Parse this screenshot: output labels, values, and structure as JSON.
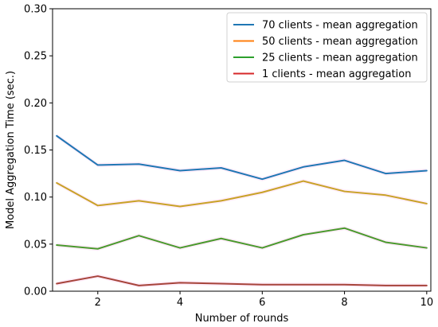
{
  "chart_data": {
    "type": "line",
    "title": "",
    "xlabel": "Number of rounds",
    "ylabel": "Model Aggregation Time (sec.)",
    "xlim": [
      0.9,
      10.1
    ],
    "ylim": [
      0.0,
      0.3
    ],
    "x_ticks": [
      2,
      4,
      6,
      8,
      10
    ],
    "x_tick_labels": [
      "2",
      "4",
      "6",
      "8",
      "10"
    ],
    "y_ticks": [
      0.0,
      0.05,
      0.1,
      0.15,
      0.2,
      0.25,
      0.3
    ],
    "y_tick_labels": [
      "0.00",
      "0.05",
      "0.10",
      "0.15",
      "0.20",
      "0.25",
      "0.30"
    ],
    "grid": false,
    "legend_position": "top-right",
    "x": [
      1,
      2,
      3,
      4,
      5,
      6,
      7,
      8,
      9,
      10
    ],
    "series": [
      {
        "name": "70 clients - mean aggregation",
        "color": "#1f77b4",
        "values": [
          0.165,
          0.134,
          0.135,
          0.128,
          0.131,
          0.119,
          0.132,
          0.139,
          0.125,
          0.128
        ]
      },
      {
        "name": "50 clients - mean aggregation",
        "color": "#c8a227",
        "values": [
          0.115,
          0.091,
          0.096,
          0.09,
          0.096,
          0.105,
          0.117,
          0.106,
          0.102,
          0.093
        ]
      },
      {
        "name": "25 clients - mean aggregation",
        "color": "#4a9a2e",
        "values": [
          0.049,
          0.045,
          0.059,
          0.046,
          0.056,
          0.046,
          0.06,
          0.067,
          0.052,
          0.046
        ]
      },
      {
        "name": "1 clients - mean aggregation",
        "color": "#a6443a",
        "values": [
          0.008,
          0.016,
          0.006,
          0.009,
          0.008,
          0.007,
          0.007,
          0.007,
          0.006,
          0.006
        ]
      }
    ],
    "legend_colors": [
      "#1f77b4",
      "#ff7f0e",
      "#2ca02c",
      "#d62728"
    ],
    "band_color": "#ff66cc"
  }
}
